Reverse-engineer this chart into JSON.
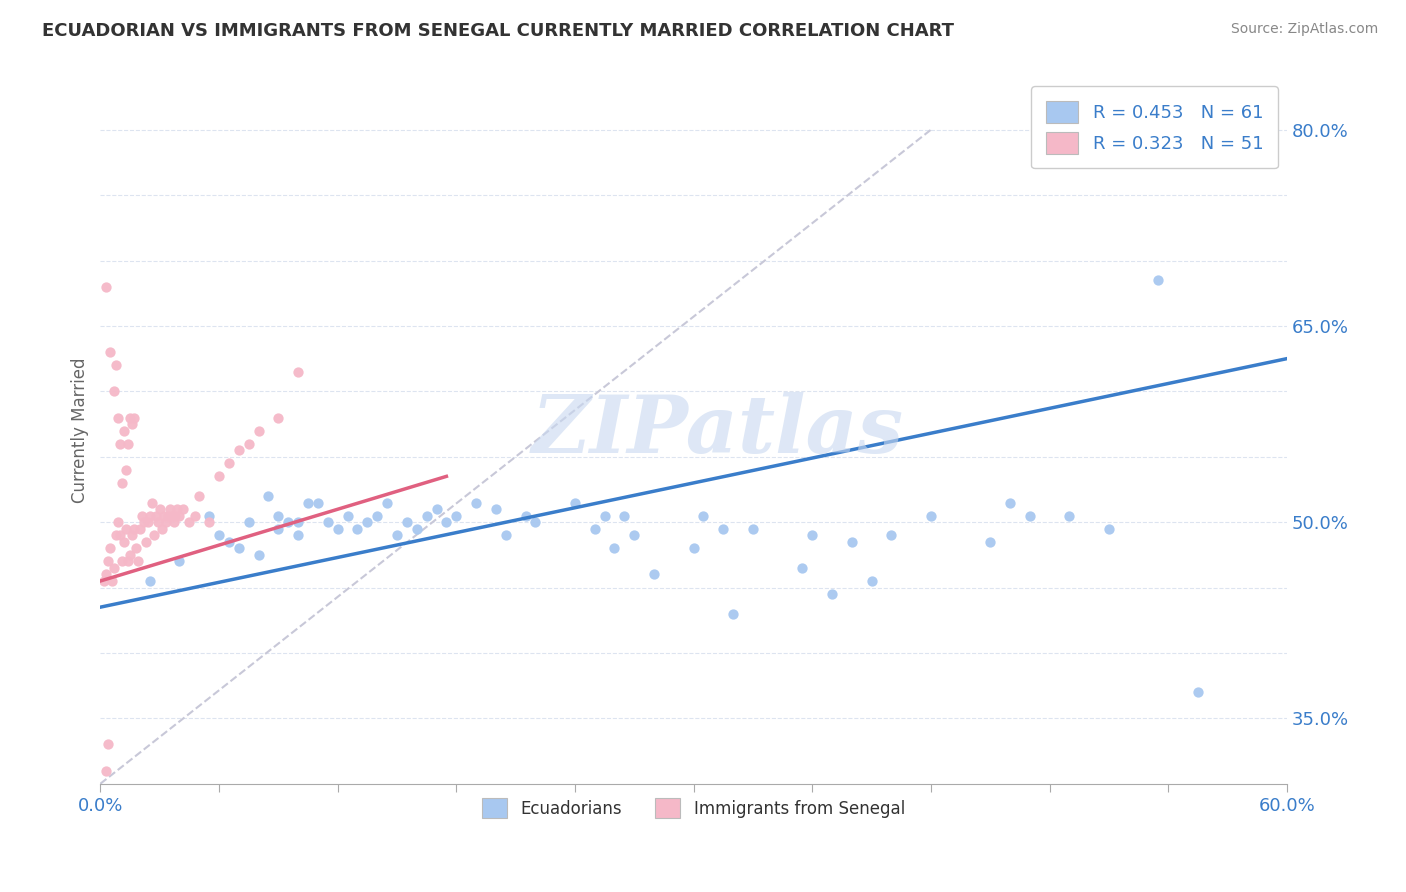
{
  "title": "ECUADORIAN VS IMMIGRANTS FROM SENEGAL CURRENTLY MARRIED CORRELATION CHART",
  "source": "Source: ZipAtlas.com",
  "ylabel": "Currently Married",
  "xlim": [
    0.0,
    0.6
  ],
  "ylim": [
    0.3,
    0.84
  ],
  "x_tick_positions": [
    0.0,
    0.06,
    0.12,
    0.18,
    0.24,
    0.3,
    0.36,
    0.42,
    0.48,
    0.54,
    0.6
  ],
  "y_tick_positions": [
    0.35,
    0.4,
    0.45,
    0.5,
    0.55,
    0.6,
    0.65,
    0.7,
    0.75,
    0.8
  ],
  "y_tick_labels": [
    "35.0%",
    "",
    "",
    "50.0%",
    "",
    "",
    "65.0%",
    "",
    "",
    "80.0%"
  ],
  "legend_label1": "Ecuadorians",
  "legend_label2": "Immigrants from Senegal",
  "dot_color_blue": "#a8c8f0",
  "dot_color_pink": "#f5b8c8",
  "line_color_blue": "#3a7dca",
  "line_color_pink": "#e06080",
  "ref_line_color": "#c8c8d8",
  "background_color": "#ffffff",
  "grid_color": "#dde4f0",
  "title_color": "#333333",
  "watermark_color": "#c8d8f0",
  "watermark": "ZIPatlas",
  "blue_line_x0": 0.0,
  "blue_line_y0": 0.435,
  "blue_line_x1": 0.6,
  "blue_line_y1": 0.625,
  "pink_line_x0": 0.0,
  "pink_line_y0": 0.455,
  "pink_line_x1": 0.175,
  "pink_line_y1": 0.535,
  "ref_line_x0": 0.0,
  "ref_line_y0": 0.3,
  "ref_line_x1": 0.42,
  "ref_line_y1": 0.8,
  "ecuadorians_x": [
    0.025,
    0.04,
    0.055,
    0.06,
    0.065,
    0.07,
    0.075,
    0.08,
    0.085,
    0.09,
    0.09,
    0.095,
    0.1,
    0.1,
    0.105,
    0.11,
    0.115,
    0.12,
    0.125,
    0.13,
    0.135,
    0.14,
    0.145,
    0.15,
    0.155,
    0.16,
    0.165,
    0.17,
    0.175,
    0.18,
    0.19,
    0.2,
    0.205,
    0.215,
    0.22,
    0.24,
    0.25,
    0.255,
    0.26,
    0.265,
    0.27,
    0.28,
    0.3,
    0.305,
    0.315,
    0.32,
    0.33,
    0.355,
    0.36,
    0.37,
    0.38,
    0.39,
    0.4,
    0.42,
    0.45,
    0.46,
    0.47,
    0.49,
    0.51,
    0.535,
    0.555
  ],
  "ecuadorians_y": [
    0.455,
    0.47,
    0.505,
    0.49,
    0.485,
    0.48,
    0.5,
    0.475,
    0.52,
    0.495,
    0.505,
    0.5,
    0.49,
    0.5,
    0.515,
    0.515,
    0.5,
    0.495,
    0.505,
    0.495,
    0.5,
    0.505,
    0.515,
    0.49,
    0.5,
    0.495,
    0.505,
    0.51,
    0.5,
    0.505,
    0.515,
    0.51,
    0.49,
    0.505,
    0.5,
    0.515,
    0.495,
    0.505,
    0.48,
    0.505,
    0.49,
    0.46,
    0.48,
    0.505,
    0.495,
    0.43,
    0.495,
    0.465,
    0.49,
    0.445,
    0.485,
    0.455,
    0.49,
    0.505,
    0.485,
    0.515,
    0.505,
    0.505,
    0.495,
    0.685,
    0.37
  ],
  "senegal_x": [
    0.002,
    0.003,
    0.004,
    0.005,
    0.006,
    0.007,
    0.008,
    0.009,
    0.01,
    0.011,
    0.012,
    0.013,
    0.014,
    0.015,
    0.016,
    0.017,
    0.018,
    0.019,
    0.02,
    0.021,
    0.022,
    0.023,
    0.024,
    0.025,
    0.026,
    0.027,
    0.028,
    0.029,
    0.03,
    0.031,
    0.032,
    0.033,
    0.034,
    0.035,
    0.036,
    0.037,
    0.038,
    0.039,
    0.04,
    0.042,
    0.045,
    0.048,
    0.05,
    0.055,
    0.06,
    0.065,
    0.07,
    0.075,
    0.08,
    0.09,
    0.1
  ],
  "senegal_y": [
    0.455,
    0.46,
    0.47,
    0.48,
    0.455,
    0.465,
    0.49,
    0.5,
    0.49,
    0.47,
    0.485,
    0.495,
    0.47,
    0.475,
    0.49,
    0.495,
    0.48,
    0.47,
    0.495,
    0.505,
    0.5,
    0.485,
    0.5,
    0.505,
    0.515,
    0.49,
    0.505,
    0.5,
    0.51,
    0.495,
    0.505,
    0.5,
    0.505,
    0.51,
    0.505,
    0.5,
    0.505,
    0.51,
    0.505,
    0.51,
    0.5,
    0.505,
    0.52,
    0.5,
    0.535,
    0.545,
    0.555,
    0.56,
    0.57,
    0.58,
    0.615
  ],
  "senegal_outliers_x": [
    0.003,
    0.005,
    0.007,
    0.008,
    0.009,
    0.01,
    0.011,
    0.012,
    0.013,
    0.014,
    0.015,
    0.016,
    0.017,
    0.003,
    0.004
  ],
  "senegal_outliers_y": [
    0.68,
    0.63,
    0.6,
    0.62,
    0.58,
    0.56,
    0.53,
    0.57,
    0.54,
    0.56,
    0.58,
    0.575,
    0.58,
    0.31,
    0.33
  ]
}
